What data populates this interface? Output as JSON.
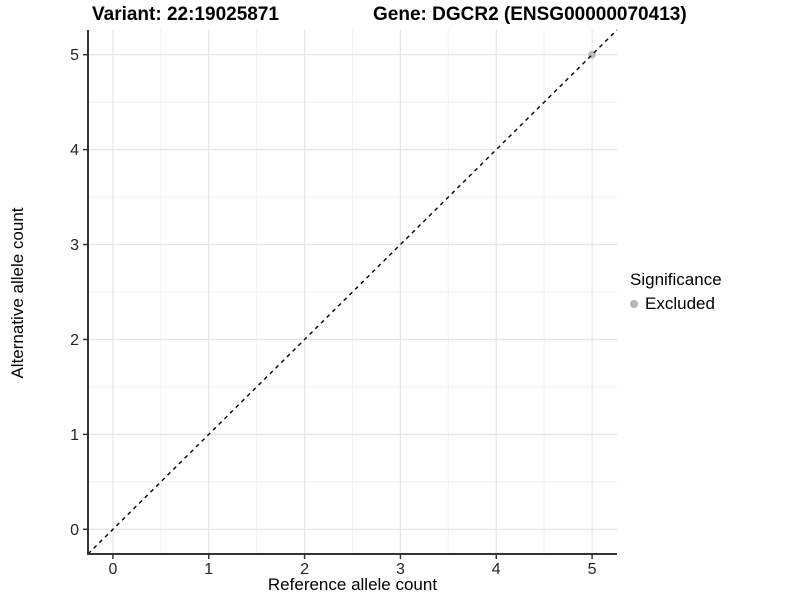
{
  "chart_data": {
    "type": "scatter",
    "title_variant": "Variant: 22:19025871",
    "title_gene": "Gene: DGCR2 (ENSG00000070413)",
    "xlabel": "Reference allele count",
    "ylabel": "Alternative allele count",
    "xlim": [
      -0.26,
      5.26
    ],
    "ylim": [
      -0.26,
      5.26
    ],
    "x_ticks": [
      0,
      1,
      2,
      3,
      4,
      5
    ],
    "y_ticks": [
      0,
      1,
      2,
      3,
      4,
      5
    ],
    "minor_ticks": [
      0.5,
      1.5,
      2.5,
      3.5,
      4.5
    ],
    "grid": "major+minor",
    "reference_line": {
      "type": "abline",
      "slope": 1,
      "intercept": 0,
      "style": "dashed",
      "color": "#000000"
    },
    "series": [
      {
        "name": "Excluded",
        "color": "#bebebe",
        "points": [
          {
            "x": 5,
            "y": 5
          }
        ]
      }
    ],
    "legend": {
      "position": "right",
      "title": "Significance",
      "items": [
        {
          "label": "Excluded",
          "color": "#b5b5b5"
        }
      ]
    },
    "colors": {
      "panel_background": "#ffffff",
      "grid_major": "#e5e5e5",
      "grid_minor": "#f0f0f0",
      "axis_line": "#333333",
      "tick_label": "#262626"
    }
  }
}
